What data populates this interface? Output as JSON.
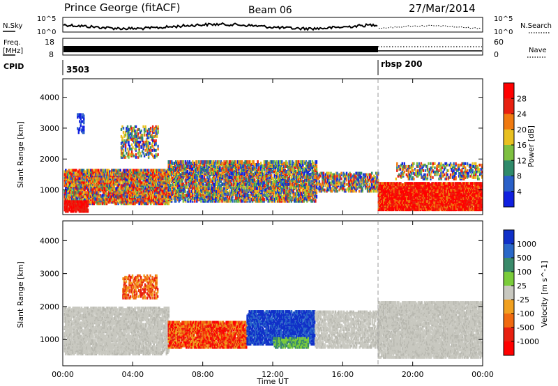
{
  "header": {
    "station": "Prince George (fitACF)",
    "beam": "Beam 06",
    "date": "27/Mar/2014"
  },
  "panels": {
    "nsky": {
      "label": "N.Sky",
      "ticks": [
        "10^5",
        "10^0"
      ],
      "right_ticks": [
        "10^5",
        "10^0"
      ],
      "right_label": "N.Search"
    },
    "freq": {
      "label_1": "Freq.",
      "label_2": "[MHz]",
      "ticks": [
        "18",
        "8"
      ],
      "right_ticks": [
        "60",
        "0"
      ],
      "right_label": "Nave"
    },
    "cpid": {
      "label": "CPID",
      "segments": [
        "3503",
        "rbsp 200"
      ]
    }
  },
  "chart_data": [
    {
      "type": "heatmap",
      "title": "",
      "xlabel": "",
      "ylabel": "Slant Range [km]",
      "yticks": [
        "1000",
        "2000",
        "3000",
        "4000"
      ],
      "ylim": [
        200,
        4600
      ],
      "xlim_hours": [
        0,
        24
      ],
      "colorbar": {
        "label": "Power [dB]",
        "ticks": [
          "4",
          "8",
          "12",
          "16",
          "20",
          "24",
          "28"
        ],
        "colors": [
          "#1020e0",
          "#2a60c8",
          "#2f8a6a",
          "#7ec040",
          "#e8c020",
          "#f07a10",
          "#e82010",
          "#ff0000"
        ]
      }
    },
    {
      "type": "heatmap",
      "title": "",
      "xlabel": "Time UT",
      "ylabel": "Slant Range [km]",
      "yticks": [
        "1000",
        "2000",
        "3000",
        "4000"
      ],
      "ylim": [
        200,
        4600
      ],
      "xlim_hours": [
        0,
        24
      ],
      "xticks": [
        "00:00",
        "04:00",
        "08:00",
        "12:00",
        "16:00",
        "20:00",
        "00:00"
      ],
      "colorbar": {
        "label": "Velocity [m s^-1]",
        "ticks": [
          "1000",
          "500",
          "100",
          "25",
          "-25",
          "-100",
          "-500",
          "-1000"
        ],
        "colors": [
          "#1030c8",
          "#2a68c8",
          "#3a8a6a",
          "#7acc3a",
          "#c8c8c0",
          "#f0a020",
          "#f06a10",
          "#e82010",
          "#ff0000"
        ]
      }
    }
  ],
  "mode_change_hour": 18.0
}
